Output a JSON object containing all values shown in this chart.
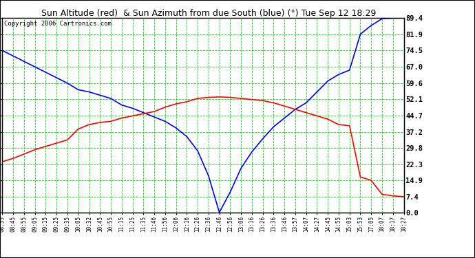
{
  "title": "Sun Altitude (red)  & Sun Azimuth from due South (blue) (°) Tue Sep 12 18:29",
  "copyright": "Copyright 2006 Cartronics.com",
  "yticks": [
    0.0,
    7.4,
    14.9,
    22.3,
    29.8,
    37.2,
    44.7,
    52.1,
    59.6,
    67.0,
    74.5,
    81.9,
    89.4
  ],
  "ylim": [
    0.0,
    89.4
  ],
  "grid_color": "#00dd00",
  "red_color": "#ff0000",
  "blue_color": "#0000ff",
  "time_labels": [
    "08:33",
    "08:45",
    "08:55",
    "09:05",
    "09:15",
    "09:25",
    "09:35",
    "10:05",
    "10:32",
    "10:45",
    "10:55",
    "11:15",
    "11:25",
    "11:35",
    "11:46",
    "11:56",
    "12:06",
    "12:16",
    "12:26",
    "12:36",
    "12:46",
    "12:56",
    "13:06",
    "13:16",
    "13:26",
    "13:36",
    "13:46",
    "13:57",
    "14:07",
    "14:27",
    "14:45",
    "14:55",
    "15:03",
    "15:53",
    "17:05",
    "18:07",
    "18:17",
    "18:27"
  ],
  "altitude_data_x": [
    0,
    1,
    2,
    3,
    4,
    5,
    6,
    7,
    8,
    9,
    10,
    11,
    12,
    13,
    14,
    15,
    16,
    17,
    18,
    19,
    20,
    21,
    22,
    23,
    24,
    25,
    26,
    27,
    28,
    29,
    30,
    31,
    32,
    33,
    34,
    35,
    36,
    37
  ],
  "altitude_data_y": [
    23.5,
    25.0,
    27.0,
    29.0,
    30.5,
    32.0,
    33.5,
    38.5,
    40.5,
    41.5,
    42.0,
    43.5,
    44.5,
    45.5,
    46.5,
    48.5,
    50.0,
    51.0,
    52.5,
    53.0,
    53.2,
    53.0,
    52.5,
    52.0,
    51.5,
    50.5,
    49.0,
    47.5,
    46.0,
    44.5,
    43.0,
    40.5,
    40.0,
    16.5,
    14.9,
    8.5,
    7.8,
    7.4
  ],
  "azimuth_data_x": [
    0,
    1,
    2,
    3,
    4,
    5,
    6,
    7,
    8,
    9,
    10,
    11,
    12,
    13,
    14,
    15,
    16,
    17,
    18,
    19,
    20,
    21,
    22,
    23,
    24,
    25,
    26,
    27,
    28,
    29,
    30,
    31,
    32,
    33,
    34,
    35,
    36,
    37
  ],
  "azimuth_data_y": [
    74.5,
    72.0,
    69.5,
    67.0,
    64.5,
    62.0,
    59.5,
    56.5,
    55.5,
    54.0,
    52.5,
    49.5,
    48.0,
    46.0,
    44.0,
    42.0,
    39.0,
    35.0,
    28.5,
    17.0,
    0.2,
    9.5,
    20.5,
    28.0,
    34.0,
    39.5,
    43.5,
    47.5,
    50.5,
    55.5,
    60.5,
    63.5,
    65.5,
    82.0,
    86.0,
    89.1,
    89.3,
    89.4
  ]
}
